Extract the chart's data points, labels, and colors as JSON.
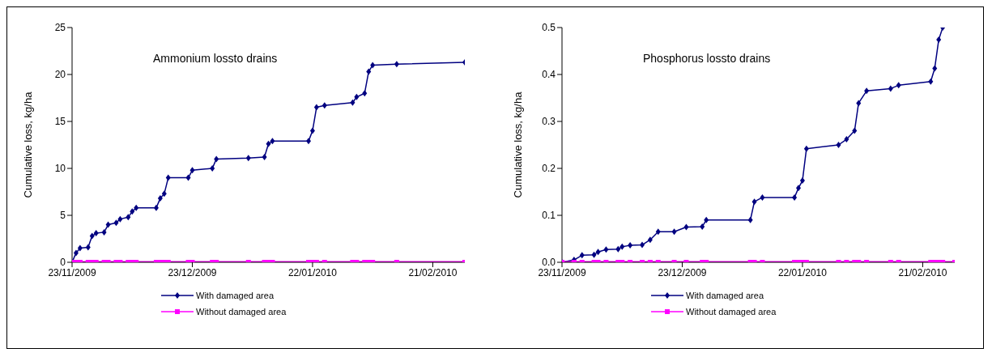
{
  "chart_data": [
    {
      "type": "line",
      "title": "Ammonium lossto drains",
      "ylabel": "Cumulative loss, kg/ha",
      "xlim": [
        "2009-11-23",
        "2010-03-01"
      ],
      "xticks": [
        {
          "value": "2009-11-23",
          "label": "23/11/2009"
        },
        {
          "value": "2009-12-23",
          "label": "23/12/2009"
        },
        {
          "value": "2010-01-22",
          "label": "22/01/2010"
        },
        {
          "value": "2010-02-21",
          "label": "21/02/2010"
        }
      ],
      "ylim": [
        0,
        25
      ],
      "yticks": [
        0,
        5,
        10,
        15,
        20,
        25
      ],
      "legend": "bottom",
      "series": [
        {
          "name": "With damaged area",
          "color": "#000080",
          "marker": "diamond",
          "x": [
            "2009-11-23",
            "2009-11-24",
            "2009-11-25",
            "2009-11-27",
            "2009-11-28",
            "2009-11-29",
            "2009-12-01",
            "2009-12-02",
            "2009-12-04",
            "2009-12-05",
            "2009-12-07",
            "2009-12-08",
            "2009-12-09",
            "2009-12-14",
            "2009-12-15",
            "2009-12-16",
            "2009-12-17",
            "2009-12-22",
            "2009-12-23",
            "2009-12-28",
            "2009-12-29",
            "2010-01-06",
            "2010-01-10",
            "2010-01-11",
            "2010-01-12",
            "2010-01-21",
            "2010-01-22",
            "2010-01-23",
            "2010-01-25",
            "2010-02-01",
            "2010-02-02",
            "2010-02-04",
            "2010-02-05",
            "2010-02-06",
            "2010-02-12",
            "2010-03-01"
          ],
          "values": [
            0,
            1.0,
            1.5,
            1.6,
            2.8,
            3.1,
            3.2,
            4.0,
            4.2,
            4.6,
            4.8,
            5.4,
            5.8,
            5.8,
            6.8,
            7.3,
            9.0,
            9.0,
            9.8,
            10.0,
            11.0,
            11.1,
            11.2,
            12.6,
            12.9,
            12.9,
            14.0,
            16.5,
            16.7,
            17.0,
            17.6,
            18.0,
            20.3,
            21.0,
            21.1,
            21.3
          ]
        },
        {
          "name": "Without damaged area",
          "color": "#ff00ff",
          "marker": "square",
          "x": [
            "2009-11-23",
            "2009-11-24",
            "2009-11-25",
            "2009-11-27",
            "2009-11-28",
            "2009-11-29",
            "2009-12-01",
            "2009-12-02",
            "2009-12-04",
            "2009-12-05",
            "2009-12-07",
            "2009-12-08",
            "2009-12-09",
            "2009-12-14",
            "2009-12-15",
            "2009-12-16",
            "2009-12-17",
            "2009-12-22",
            "2009-12-23",
            "2009-12-28",
            "2009-12-29",
            "2010-01-06",
            "2010-01-10",
            "2010-01-11",
            "2010-01-12",
            "2010-01-21",
            "2010-01-22",
            "2010-01-23",
            "2010-01-25",
            "2010-02-01",
            "2010-02-02",
            "2010-02-04",
            "2010-02-05",
            "2010-02-06",
            "2010-02-12",
            "2010-03-01"
          ],
          "values": [
            0,
            0,
            0,
            0,
            0,
            0,
            0,
            0,
            0,
            0,
            0,
            0,
            0,
            0,
            0,
            0,
            0,
            0,
            0,
            0,
            0,
            0,
            0,
            0,
            0,
            0,
            0,
            0,
            0,
            0,
            0,
            0,
            0,
            0,
            0,
            0
          ]
        }
      ]
    },
    {
      "type": "line",
      "title": "Phosphorus lossto drains",
      "ylabel": "Cumulative loss, kg/ha",
      "xlim": [
        "2009-11-23",
        "2010-03-01"
      ],
      "xticks": [
        {
          "value": "2009-11-23",
          "label": "23/11/2009"
        },
        {
          "value": "2009-12-23",
          "label": "23/12/2009"
        },
        {
          "value": "2010-01-22",
          "label": "22/01/2010"
        },
        {
          "value": "2010-02-21",
          "label": "21/02/2010"
        }
      ],
      "ylim": [
        0,
        0.5
      ],
      "yticks": [
        {
          "value": 0,
          "label": "0.0"
        },
        {
          "value": 0.1,
          "label": "0.1"
        },
        {
          "value": 0.2,
          "label": "0.2"
        },
        {
          "value": 0.3,
          "label": "0.3"
        },
        {
          "value": 0.4,
          "label": "0.4"
        },
        {
          "value": 0.5,
          "label": "0.5"
        }
      ],
      "legend": "bottom",
      "series": [
        {
          "name": "With damaged area",
          "color": "#000080",
          "marker": "diamond",
          "x": [
            "2009-11-23",
            "2009-11-26",
            "2009-11-28",
            "2009-12-01",
            "2009-12-02",
            "2009-12-04",
            "2009-12-07",
            "2009-12-08",
            "2009-12-10",
            "2009-12-13",
            "2009-12-15",
            "2009-12-17",
            "2009-12-21",
            "2009-12-24",
            "2009-12-28",
            "2009-12-29",
            "2010-01-09",
            "2010-01-10",
            "2010-01-12",
            "2010-01-20",
            "2010-01-21",
            "2010-01-22",
            "2010-01-23",
            "2010-01-31",
            "2010-02-02",
            "2010-02-04",
            "2010-02-05",
            "2010-02-07",
            "2010-02-13",
            "2010-02-15",
            "2010-02-23",
            "2010-02-24",
            "2010-02-25",
            "2010-02-26"
          ],
          "values": [
            0,
            0.005,
            0.015,
            0.016,
            0.022,
            0.027,
            0.028,
            0.033,
            0.036,
            0.037,
            0.048,
            0.065,
            0.065,
            0.075,
            0.076,
            0.09,
            0.09,
            0.129,
            0.138,
            0.138,
            0.158,
            0.174,
            0.242,
            0.25,
            0.262,
            0.28,
            0.339,
            0.365,
            0.37,
            0.377,
            0.385,
            0.413,
            0.474,
            0.5
          ]
        },
        {
          "name": "Without damaged area",
          "color": "#ff00ff",
          "marker": "square",
          "x": [
            "2009-11-23",
            "2009-11-26",
            "2009-11-28",
            "2009-12-01",
            "2009-12-02",
            "2009-12-04",
            "2009-12-07",
            "2009-12-08",
            "2009-12-10",
            "2009-12-13",
            "2009-12-15",
            "2009-12-17",
            "2009-12-21",
            "2009-12-24",
            "2009-12-28",
            "2009-12-29",
            "2010-01-09",
            "2010-01-10",
            "2010-01-12",
            "2010-01-20",
            "2010-01-21",
            "2010-01-22",
            "2010-01-23",
            "2010-01-31",
            "2010-02-02",
            "2010-02-04",
            "2010-02-05",
            "2010-02-07",
            "2010-02-13",
            "2010-02-15",
            "2010-02-23",
            "2010-02-24",
            "2010-02-25",
            "2010-02-26",
            "2010-03-01"
          ],
          "values": [
            0,
            0,
            0,
            0,
            0,
            0,
            0,
            0,
            0,
            0,
            0,
            0,
            0,
            0,
            0,
            0,
            0,
            0,
            0,
            0,
            0,
            0,
            0,
            0,
            0,
            0,
            0,
            0,
            0,
            0,
            0,
            0,
            0,
            0,
            0
          ]
        }
      ]
    }
  ]
}
